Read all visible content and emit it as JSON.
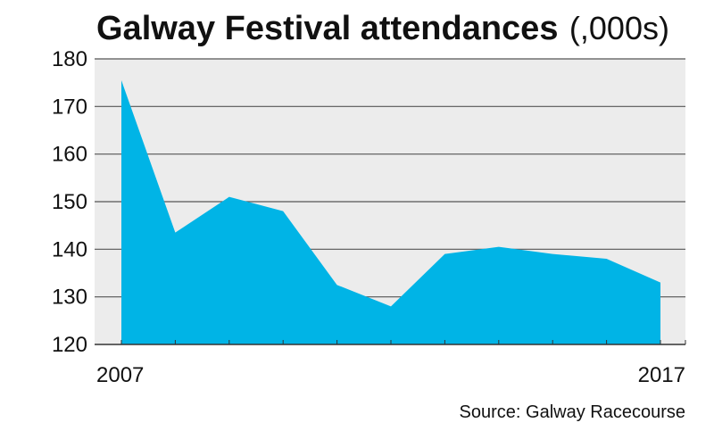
{
  "chart_data": {
    "type": "area",
    "title": "Galway Festival attendances",
    "title_unit": "(,000s)",
    "source": "Source: Galway Racecourse",
    "x": [
      2007,
      2008,
      2009,
      2010,
      2011,
      2012,
      2013,
      2014,
      2015,
      2016,
      2017
    ],
    "x_tick_labels": [
      "2007",
      "2017"
    ],
    "values": [
      175.5,
      143.5,
      151,
      148,
      132.5,
      128,
      139,
      140.5,
      139,
      138,
      133
    ],
    "ylim": [
      120,
      180
    ],
    "y_ticks": [
      "120",
      "130",
      "140",
      "150",
      "160",
      "170",
      "180"
    ],
    "grid": true,
    "legend": "none",
    "colors": {
      "fill": "#00b4e6",
      "plot_background": "#ececec",
      "gridline": "#555555",
      "axis": "#333333"
    }
  }
}
